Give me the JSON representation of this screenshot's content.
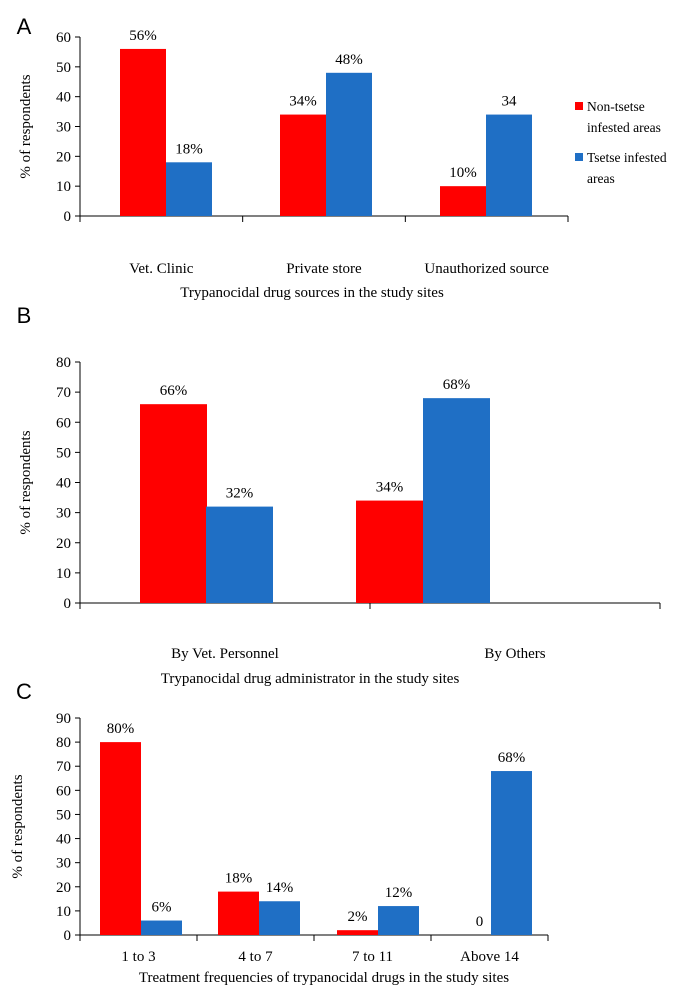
{
  "colors": {
    "non_tsetse": "#ff0000",
    "tsetse": "#1f6fc5",
    "axis": "#000000"
  },
  "legend": {
    "non_tsetse_lines": [
      "Non-tsetse",
      "infested areas"
    ],
    "tsetse_lines": [
      "Tsetse infested",
      "areas"
    ]
  },
  "chart_data": [
    {
      "panel": "A",
      "type": "bar",
      "categories": [
        "Vet. Clinic",
        "Private store",
        "Unauthorized source"
      ],
      "series": [
        {
          "values": [
            56,
            34,
            10
          ],
          "labels": [
            "56%",
            "34%",
            "10%"
          ]
        },
        {
          "values": [
            18,
            48,
            34
          ],
          "labels": [
            "18%",
            "48%",
            "34"
          ]
        }
      ],
      "ylim": [
        0,
        60
      ],
      "yticks": [
        "0",
        "10",
        "20",
        "30",
        "40",
        "50",
        "60"
      ],
      "ylabel": "% of respondents",
      "xlabel": "Trypanocidal drug sources in the study sites",
      "legend_position": "right"
    },
    {
      "panel": "B",
      "type": "bar",
      "categories": [
        "By Vet. Personnel",
        "By Others"
      ],
      "series": [
        {
          "values": [
            66,
            34
          ],
          "labels": [
            "66%",
            "34%"
          ]
        },
        {
          "values": [
            32,
            68
          ],
          "labels": [
            "32%",
            "68%"
          ]
        }
      ],
      "ylim": [
        0,
        80
      ],
      "yticks": [
        "0",
        "10",
        "20",
        "30",
        "40",
        "50",
        "60",
        "70",
        "80"
      ],
      "ylabel": "% of respondents",
      "xlabel": "Trypanocidal drug administrator in the study sites"
    },
    {
      "panel": "C",
      "type": "bar",
      "categories": [
        "1 to 3",
        "4 to 7",
        "7 to 11",
        "Above 14"
      ],
      "series": [
        {
          "values": [
            80,
            18,
            2,
            0
          ],
          "labels": [
            "80%",
            "18%",
            "2%",
            "0"
          ]
        },
        {
          "values": [
            6,
            14,
            12,
            68
          ],
          "labels": [
            "6%",
            "14%",
            "12%",
            "68%"
          ]
        }
      ],
      "ylim": [
        0,
        90
      ],
      "yticks": [
        "0",
        "10",
        "20",
        "30",
        "40",
        "50",
        "60",
        "70",
        "80",
        "90"
      ],
      "ylabel": "% of respondents",
      "xlabel": "Treatment frequencies of trypanocidal drugs in the study sites"
    }
  ]
}
